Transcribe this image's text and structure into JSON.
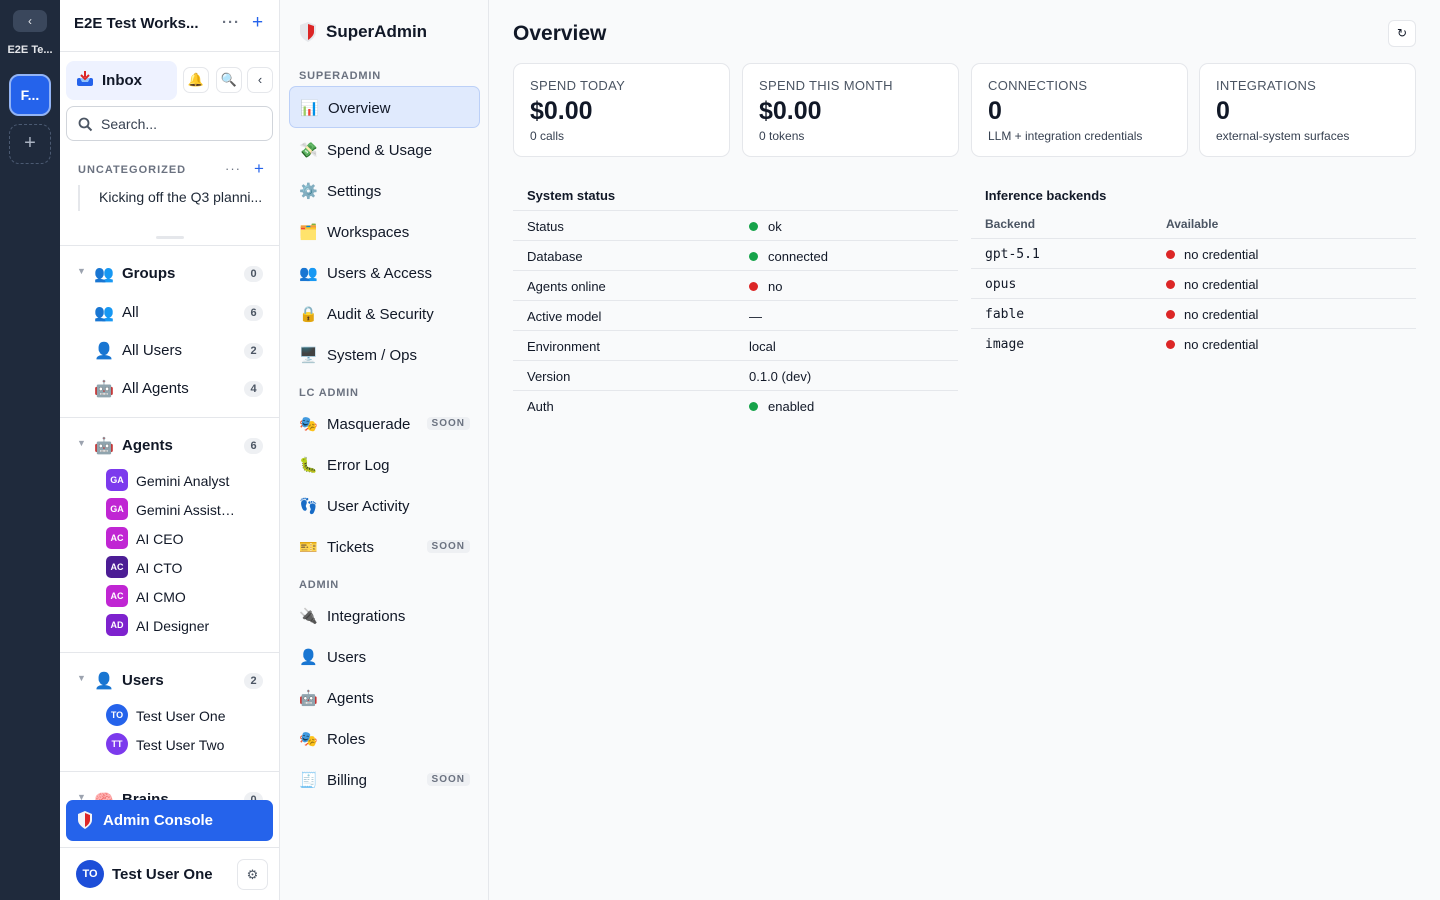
{
  "rail": {
    "collapse_label": "‹",
    "workspace_short": "E2E Te...",
    "workspace_badge": "F...",
    "add_label": "+"
  },
  "sidebar": {
    "workspace_title": "E2E Test Works...",
    "more_label": "···",
    "add_label": "+",
    "inbox_label": "Inbox",
    "bell_icon": "🔔",
    "search_icon_glyph": "🔍",
    "collapse_label": "‹",
    "search_placeholder": "Search...",
    "uncategorized_label": "UNCATEGORIZED",
    "uncategorized_more": "···",
    "uncategorized_add": "+",
    "thread_title": "Kicking off the Q3 planni...",
    "groups": {
      "title": "Groups",
      "emoji": "👥",
      "count": "0",
      "items": [
        {
          "label": "All",
          "emoji": "👥",
          "count": "6"
        },
        {
          "label": "All Users",
          "emoji": "👤",
          "count": "2"
        },
        {
          "label": "All Agents",
          "emoji": "🤖",
          "count": "4"
        }
      ]
    },
    "agents": {
      "title": "Agents",
      "emoji": "🤖",
      "count": "6",
      "items": [
        {
          "initials": "GA",
          "label": "Gemini Analyst",
          "color": "#7c3aed"
        },
        {
          "initials": "GA",
          "label": "Gemini Assistant",
          "color": "#c026d3"
        },
        {
          "initials": "AC",
          "label": "AI CEO",
          "color": "#c026d3"
        },
        {
          "initials": "AC",
          "label": "AI CTO",
          "color": "#4c1d95"
        },
        {
          "initials": "AC",
          "label": "AI CMO",
          "color": "#c026d3"
        },
        {
          "initials": "AD",
          "label": "AI Designer",
          "color": "#7e22ce"
        }
      ]
    },
    "users": {
      "title": "Users",
      "emoji": "👤",
      "count": "2",
      "items": [
        {
          "initials": "TO",
          "label": "Test User One",
          "color": "#2563eb"
        },
        {
          "initials": "TT",
          "label": "Test User Two",
          "color": "#7c3aed"
        }
      ]
    },
    "brains": {
      "title": "Brains",
      "emoji": "🧠",
      "count": "0"
    },
    "admin_console_label": "Admin Console",
    "current_user": {
      "initials": "TO",
      "name": "Test User One"
    },
    "settings_glyph": "⚙"
  },
  "admin_nav": {
    "brand": "SuperAdmin",
    "sections": {
      "superadmin": "SUPERADMIN",
      "lc_admin": "LC ADMIN",
      "admin": "ADMIN"
    },
    "superadmin_items": [
      {
        "label": "Overview",
        "emoji": "📊"
      },
      {
        "label": "Spend & Usage",
        "emoji": "💸"
      },
      {
        "label": "Settings",
        "emoji": "⚙️"
      },
      {
        "label": "Workspaces",
        "emoji": "🗂️"
      },
      {
        "label": "Users & Access",
        "emoji": "👥"
      },
      {
        "label": "Audit & Security",
        "emoji": "🔒"
      },
      {
        "label": "System / Ops",
        "emoji": "🖥️"
      }
    ],
    "lc_items": [
      {
        "label": "Masquerade",
        "emoji": "🎭",
        "badge": "SOON"
      },
      {
        "label": "Error Log",
        "emoji": "🐛",
        "badge": ""
      },
      {
        "label": "User Activity",
        "emoji": "👣",
        "badge": ""
      },
      {
        "label": "Tickets",
        "emoji": "🎫",
        "badge": "SOON"
      }
    ],
    "admin_items": [
      {
        "label": "Integrations",
        "emoji": "🔌",
        "badge": ""
      },
      {
        "label": "Users",
        "emoji": "👤",
        "badge": ""
      },
      {
        "label": "Agents",
        "emoji": "🤖",
        "badge": ""
      },
      {
        "label": "Roles",
        "emoji": "🎭",
        "badge": ""
      },
      {
        "label": "Billing",
        "emoji": "🧾",
        "badge": "SOON"
      }
    ]
  },
  "main": {
    "title": "Overview",
    "refresh_glyph": "↻",
    "cards": [
      {
        "label": "SPEND TODAY",
        "value": "$0.00",
        "sub": "0 calls"
      },
      {
        "label": "SPEND THIS MONTH",
        "value": "$0.00",
        "sub": "0 tokens"
      },
      {
        "label": "CONNECTIONS",
        "value": "0",
        "sub": "LLM + integration credentials"
      },
      {
        "label": "INTEGRATIONS",
        "value": "0",
        "sub": "external-system surfaces"
      }
    ],
    "system_status": {
      "title": "System status",
      "rows": [
        {
          "key": "Status",
          "value": "ok",
          "dot": "green"
        },
        {
          "key": "Database",
          "value": "connected",
          "dot": "green"
        },
        {
          "key": "Agents online",
          "value": "no",
          "dot": "red"
        },
        {
          "key": "Active model",
          "value": "—",
          "dot": ""
        },
        {
          "key": "Environment",
          "value": "local",
          "dot": ""
        },
        {
          "key": "Version",
          "value": "0.1.0 (dev)",
          "dot": ""
        },
        {
          "key": "Auth",
          "value": "enabled",
          "dot": "green"
        }
      ]
    },
    "inference": {
      "title": "Inference backends",
      "col_backend": "Backend",
      "col_available": "Available",
      "rows": [
        {
          "backend": "gpt-5.1",
          "available": "no credential",
          "dot": "red"
        },
        {
          "backend": "opus",
          "available": "no credential",
          "dot": "red"
        },
        {
          "backend": "fable",
          "available": "no credential",
          "dot": "red"
        },
        {
          "backend": "image",
          "available": "no credential",
          "dot": "red"
        }
      ]
    }
  }
}
